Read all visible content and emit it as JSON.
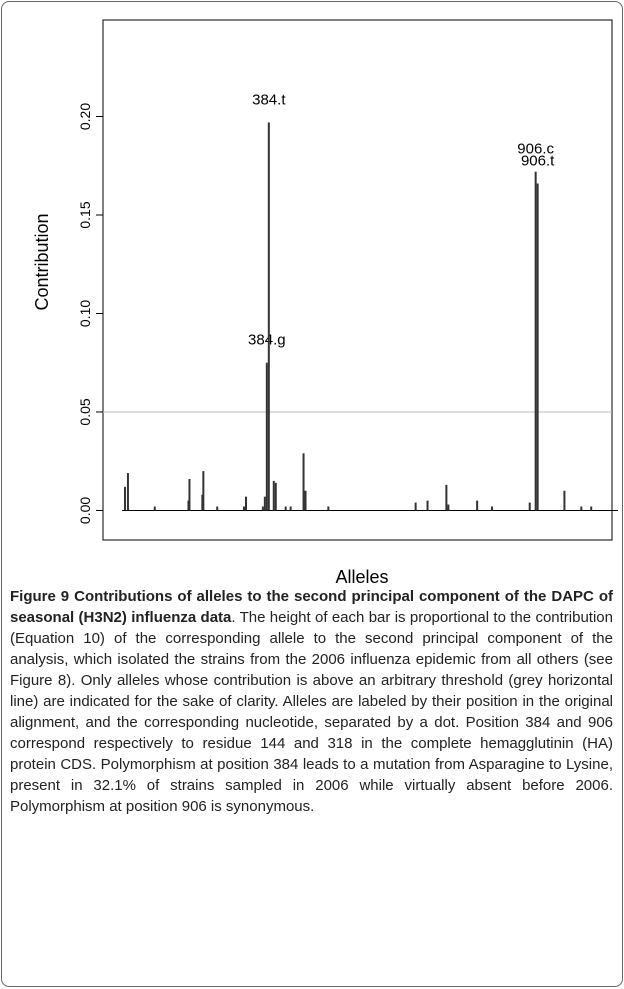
{
  "chart_data": {
    "type": "bar",
    "y_label": "Contribution",
    "x_label": "Alleles",
    "x": [
      3,
      6,
      33,
      67,
      68,
      81,
      82,
      96,
      123,
      125,
      142,
      144,
      146,
      148,
      153,
      155,
      165,
      170,
      183,
      185,
      208,
      296,
      308,
      327,
      329,
      358,
      373,
      411,
      417,
      419,
      446,
      463,
      473
    ],
    "values": [
      0.012,
      0.019,
      0.002,
      0.005,
      0.016,
      0.008,
      0.02,
      0.002,
      0.002,
      0.007,
      0.002,
      0.007,
      0.075,
      0.197,
      0.015,
      0.014,
      0.002,
      0.002,
      0.029,
      0.01,
      0.002,
      0.004,
      0.005,
      0.013,
      0.003,
      0.005,
      0.002,
      0.004,
      0.172,
      0.166,
      0.01,
      0.002,
      0.002
    ],
    "labels": [
      null,
      null,
      null,
      null,
      null,
      null,
      null,
      null,
      null,
      null,
      null,
      null,
      "384.g",
      "384.t",
      null,
      null,
      null,
      null,
      null,
      null,
      null,
      null,
      null,
      null,
      null,
      null,
      null,
      null,
      "906.c",
      "906.t",
      null,
      null,
      null
    ],
    "color": "#333333",
    "xlim": [
      0,
      500
    ],
    "ylim": [
      -0.015,
      0.249
    ],
    "yticks": [
      {
        "value": 0,
        "label": "0.00"
      },
      {
        "value": 0.05,
        "label": "0.05"
      },
      {
        "value": 0.1,
        "label": "0.10"
      },
      {
        "value": 0.15,
        "label": "0.15"
      },
      {
        "value": 0.2,
        "label": "0.20"
      }
    ],
    "threshold": 0.05,
    "threshold_color": "#bbbbbb"
  },
  "caption": {
    "title": "Figure 9 Contributions of alleles to the second principal component of the DAPC of seasonal (H3N2) influenza data",
    "text": ". The height of each bar is proportional to the contribution (Equation 10) of the corresponding allele to the second principal component of the analysis, which isolated the strains from the 2006 influenza epidemic from all others (see Figure 8). Only alleles whose contribution is above an arbitrary threshold (grey horizontal line) are indicated for the sake of clarity. Alleles are labeled by their position in the original alignment, and the corresponding nucleotide, separated by a dot. Position 384 and 906 correspond respectively to residue 144 and 318 in the complete hemagglutinin (HA) protein CDS. Polymorphism at position 384 leads to a mutation from Asparagine to Lysine, present in 32.1% of strains sampled in 2006 while virtually absent before 2006. Polymorphism at position 906 is synonymous."
  }
}
